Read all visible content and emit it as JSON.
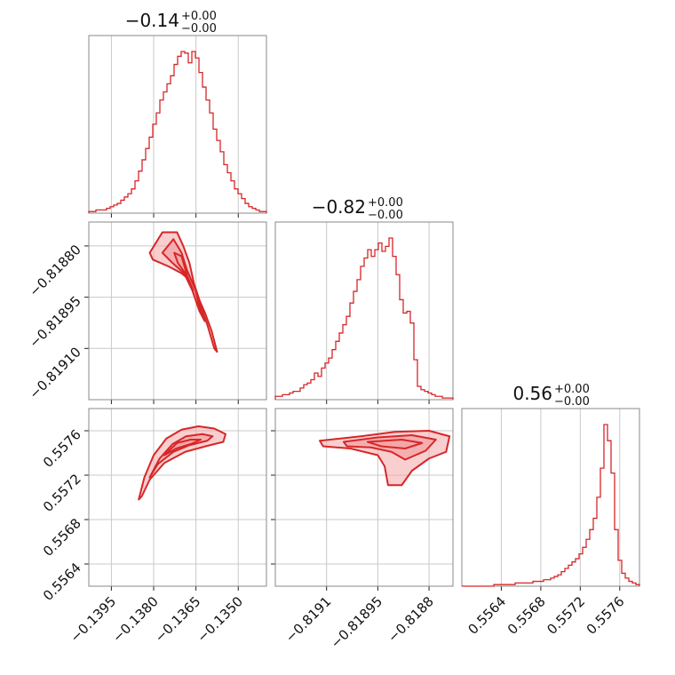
{
  "colors": {
    "series": "#d62728",
    "fill": "#f4a6a7",
    "grid": "#c8c8c8",
    "frame": "#888888"
  },
  "chart_data": [
    {
      "type": "histogram",
      "panel": "1-1",
      "title": "−0.14",
      "title_sup": "+0.00",
      "title_sub": "−0.00",
      "xlim": [
        -0.1403,
        -0.134
      ],
      "x_ticks": [
        -0.1395,
        -0.138,
        -0.1365,
        -0.135
      ],
      "bin_edges_start": -0.1403,
      "bin_width": 0.000126,
      "counts": [
        1,
        1,
        2,
        2,
        2,
        3,
        4,
        5,
        6,
        8,
        10,
        12,
        15,
        20,
        26,
        33,
        40,
        47,
        55,
        62,
        70,
        75,
        80,
        85,
        92,
        97,
        100,
        99,
        93,
        100,
        96,
        87,
        78,
        70,
        62,
        52,
        45,
        38,
        30,
        25,
        20,
        15,
        12,
        9,
        6,
        4,
        3,
        2,
        1,
        1
      ]
    },
    {
      "type": "histogram",
      "panel": "2-2",
      "title": "−0.82",
      "title_sup": "+0.00",
      "title_sub": "−0.00",
      "xlim": [
        -0.81925,
        -0.81873
      ],
      "x_ticks": [
        "−0.81910",
        "−0.81895",
        "−0.81880"
      ],
      "x_tick_values": [
        -0.8191,
        -0.81895,
        -0.8188
      ],
      "bin_edges_start": -0.81925,
      "bin_width": 1.04e-05,
      "counts": [
        2,
        2,
        3,
        3,
        4,
        5,
        5,
        7,
        9,
        10,
        12,
        16,
        14,
        19,
        22,
        25,
        30,
        35,
        40,
        45,
        50,
        58,
        65,
        72,
        80,
        85,
        90,
        86,
        90,
        94,
        89,
        92,
        97,
        86,
        75,
        60,
        52,
        53,
        46,
        24,
        8,
        6,
        5,
        4,
        3,
        2,
        2,
        1,
        1,
        1
      ]
    },
    {
      "type": "histogram",
      "panel": "3-3",
      "title": "0.56",
      "title_sup": "+0.00",
      "title_sub": "−0.00",
      "xlim": [
        0.556,
        0.5578
      ],
      "x_ticks": [
        "0.5564",
        "0.5568",
        "0.5572",
        "0.5576"
      ],
      "x_tick_values": [
        0.5564,
        0.5568,
        0.5572,
        0.5576
      ],
      "bin_edges_start": 0.556,
      "bin_width": 3.6e-05,
      "counts": [
        0,
        0,
        0,
        0,
        0,
        0,
        0,
        0,
        0,
        1,
        1,
        1,
        1,
        1,
        1,
        2,
        2,
        2,
        2,
        2,
        3,
        3,
        3,
        4,
        4,
        5,
        6,
        7,
        9,
        11,
        13,
        15,
        17,
        20,
        24,
        29,
        35,
        42,
        55,
        73,
        100,
        90,
        70,
        35,
        16,
        8,
        5,
        3,
        2,
        1
      ]
    },
    {
      "type": "contour",
      "panel": "2-1",
      "x_param": 1,
      "y_param": 2,
      "xlim": [
        -0.1403,
        -0.134
      ],
      "ylim": [
        -0.81925,
        -0.81873
      ],
      "x_ticks": [
        -0.1395,
        -0.138,
        -0.1365,
        -0.135
      ],
      "y_ticks": [
        "−0.81880",
        "−0.81895",
        "−0.81910"
      ],
      "y_tick_values": [
        -0.8188,
        -0.81895,
        -0.8191
      ],
      "levels": [
        [
          [
            -0.13814,
            -0.81882
          ],
          [
            -0.13769,
            -0.81876
          ],
          [
            -0.13717,
            -0.81876
          ],
          [
            -0.13695,
            -0.8188
          ],
          [
            -0.13673,
            -0.81885
          ],
          [
            -0.13657,
            -0.81891
          ],
          [
            -0.13637,
            -0.81896
          ],
          [
            -0.13616,
            -0.819
          ],
          [
            -0.13594,
            -0.81905
          ],
          [
            -0.13575,
            -0.81911
          ],
          [
            -0.13585,
            -0.8191
          ],
          [
            -0.1361,
            -0.81903
          ],
          [
            -0.13632,
            -0.81898
          ],
          [
            -0.13654,
            -0.81894
          ],
          [
            -0.13672,
            -0.8189
          ],
          [
            -0.13701,
            -0.81888
          ],
          [
            -0.13747,
            -0.81886
          ],
          [
            -0.13803,
            -0.81884
          ]
        ],
        [
          [
            -0.13769,
            -0.81882
          ],
          [
            -0.1373,
            -0.81878
          ],
          [
            -0.13701,
            -0.81882
          ],
          [
            -0.13682,
            -0.81887
          ],
          [
            -0.13651,
            -0.81893
          ],
          [
            -0.13638,
            -0.81898
          ],
          [
            -0.13619,
            -0.81902
          ],
          [
            -0.13638,
            -0.81899
          ],
          [
            -0.13663,
            -0.81893
          ],
          [
            -0.13692,
            -0.81888
          ],
          [
            -0.13733,
            -0.81885
          ]
        ],
        [
          [
            -0.13727,
            -0.81882
          ],
          [
            -0.13701,
            -0.81883
          ],
          [
            -0.1368,
            -0.81889
          ],
          [
            -0.1366,
            -0.81893
          ],
          [
            -0.13688,
            -0.81888
          ],
          [
            -0.13714,
            -0.81885
          ]
        ]
      ]
    },
    {
      "type": "contour",
      "panel": "3-1",
      "x_param": 1,
      "y_param": 3,
      "xlim": [
        -0.1403,
        -0.134
      ],
      "ylim": [
        0.5562,
        0.5578
      ],
      "x_ticks": [
        "−0.1395",
        "−0.1380",
        "−0.1365",
        "−0.1350"
      ],
      "x_tick_values": [
        -0.1395,
        -0.138,
        -0.1365,
        -0.135
      ],
      "y_ticks": [
        "0.5564",
        "0.5568",
        "0.5572",
        "0.5576"
      ],
      "y_tick_values": [
        0.5564,
        0.5568,
        0.5572,
        0.5576
      ],
      "levels": [
        [
          [
            -0.13853,
            0.55698
          ],
          [
            -0.13833,
            0.55718
          ],
          [
            -0.138,
            0.55738
          ],
          [
            -0.13755,
            0.55753
          ],
          [
            -0.13701,
            0.55761
          ],
          [
            -0.13641,
            0.55764
          ],
          [
            -0.13585,
            0.55762
          ],
          [
            -0.13545,
            0.55757
          ],
          [
            -0.13553,
            0.5575
          ],
          [
            -0.13616,
            0.55746
          ],
          [
            -0.13688,
            0.55741
          ],
          [
            -0.13762,
            0.55731
          ],
          [
            -0.13814,
            0.55716
          ],
          [
            -0.13842,
            0.55701
          ]
        ],
        [
          [
            -0.13814,
            0.55718
          ],
          [
            -0.13779,
            0.55735
          ],
          [
            -0.13733,
            0.55748
          ],
          [
            -0.13685,
            0.55755
          ],
          [
            -0.13627,
            0.55757
          ],
          [
            -0.13591,
            0.55755
          ],
          [
            -0.1361,
            0.55751
          ],
          [
            -0.13673,
            0.55747
          ],
          [
            -0.1373,
            0.55741
          ],
          [
            -0.13785,
            0.5573
          ]
        ],
        [
          [
            -0.13762,
            0.55738
          ],
          [
            -0.13717,
            0.55749
          ],
          [
            -0.13669,
            0.55752
          ],
          [
            -0.13633,
            0.55752
          ],
          [
            -0.13669,
            0.55748
          ],
          [
            -0.1372,
            0.55744
          ]
        ]
      ]
    },
    {
      "type": "contour",
      "panel": "3-2",
      "x_param": 2,
      "y_param": 3,
      "xlim": [
        -0.81925,
        -0.81873
      ],
      "ylim": [
        0.5562,
        0.5578
      ],
      "x_ticks": [
        -0.8191,
        -0.81895,
        -0.8188
      ],
      "y_ticks": [
        0.5564,
        0.5568,
        0.5572,
        0.5576
      ],
      "levels": [
        [
          [
            -0.81912,
            0.55751
          ],
          [
            -0.819,
            0.55755
          ],
          [
            -0.8189,
            0.55759
          ],
          [
            -0.8188,
            0.5576
          ],
          [
            -0.81874,
            0.55755
          ],
          [
            -0.81875,
            0.55741
          ],
          [
            -0.8188,
            0.55735
          ],
          [
            -0.81885,
            0.55724
          ],
          [
            -0.81888,
            0.55711
          ],
          [
            -0.81892,
            0.55711
          ],
          [
            -0.81893,
            0.55728
          ],
          [
            -0.81895,
            0.55738
          ],
          [
            -0.81903,
            0.55744
          ],
          [
            -0.81911,
            0.55746
          ]
        ],
        [
          [
            -0.81905,
            0.5575
          ],
          [
            -0.81895,
            0.55754
          ],
          [
            -0.81885,
            0.55756
          ],
          [
            -0.81878,
            0.55752
          ],
          [
            -0.81881,
            0.55742
          ],
          [
            -0.81887,
            0.55734
          ],
          [
            -0.81891,
            0.55741
          ],
          [
            -0.81897,
            0.55745
          ],
          [
            -0.81904,
            0.55746
          ]
        ],
        [
          [
            -0.81898,
            0.5575
          ],
          [
            -0.81888,
            0.55752
          ],
          [
            -0.81882,
            0.55749
          ],
          [
            -0.81887,
            0.55744
          ],
          [
            -0.81894,
            0.55746
          ]
        ]
      ]
    }
  ]
}
